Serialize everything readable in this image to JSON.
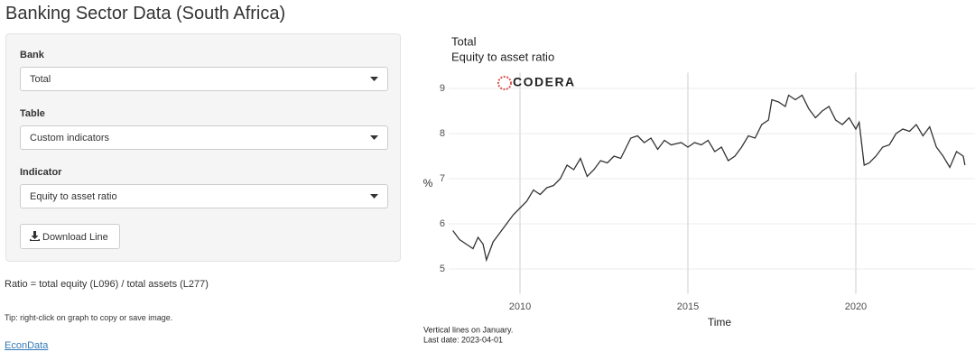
{
  "header": {
    "title": "Banking Sector Data (South Africa)"
  },
  "sidebar": {
    "fields": [
      {
        "label": "Bank",
        "value": "Total"
      },
      {
        "label": "Table",
        "value": "Custom indicators"
      },
      {
        "label": "Indicator",
        "value": "Equity to asset ratio"
      }
    ],
    "button": "Download Line"
  },
  "notes": {
    "formula": "Ratio = total equity (L096) / total assets (L277)",
    "tip": "Tip: right-click on graph to copy or save image.",
    "link": "EconData"
  },
  "chart_data": {
    "type": "line",
    "title": "Total",
    "subtitle": "Equity to asset ratio",
    "logo": "CODERA",
    "ylabel": "%",
    "xlabel": "Time",
    "caption": [
      "Vertical lines on January.",
      "Last date: 2023-04-01"
    ],
    "color": "#333333",
    "grid": true,
    "xlim": [
      2007.15,
      2023.55
    ],
    "xticks": [
      2010,
      2015,
      2020
    ],
    "ylim": [
      4.75,
      9.35
    ],
    "yticks": [
      5,
      6,
      7,
      8,
      9
    ],
    "x": [
      2008.0,
      2008.2,
      2008.4,
      2008.6,
      2008.75,
      2008.9,
      2009.0,
      2009.2,
      2009.4,
      2009.6,
      2009.8,
      2010.0,
      2010.2,
      2010.4,
      2010.6,
      2010.8,
      2011.0,
      2011.2,
      2011.4,
      2011.6,
      2011.8,
      2012.0,
      2012.2,
      2012.4,
      2012.6,
      2012.8,
      2013.0,
      2013.3,
      2013.5,
      2013.7,
      2013.9,
      2014.1,
      2014.3,
      2014.5,
      2014.8,
      2015.0,
      2015.2,
      2015.4,
      2015.6,
      2015.8,
      2016.0,
      2016.2,
      2016.4,
      2016.6,
      2016.8,
      2017.0,
      2017.2,
      2017.4,
      2017.5,
      2017.7,
      2017.9,
      2018.0,
      2018.2,
      2018.4,
      2018.6,
      2018.8,
      2019.0,
      2019.2,
      2019.4,
      2019.6,
      2019.8,
      2020.0,
      2020.1,
      2020.25,
      2020.4,
      2020.6,
      2020.8,
      2021.0,
      2021.2,
      2021.4,
      2021.6,
      2021.8,
      2022.0,
      2022.2,
      2022.4,
      2022.6,
      2022.8,
      2023.0,
      2023.2,
      2023.25
    ],
    "values": [
      5.85,
      5.65,
      5.55,
      5.45,
      5.7,
      5.55,
      5.2,
      5.6,
      5.8,
      6.0,
      6.2,
      6.35,
      6.5,
      6.75,
      6.65,
      6.8,
      6.85,
      7.0,
      7.3,
      7.2,
      7.45,
      7.05,
      7.2,
      7.4,
      7.35,
      7.5,
      7.45,
      7.9,
      7.95,
      7.8,
      7.9,
      7.65,
      7.85,
      7.75,
      7.8,
      7.7,
      7.8,
      7.75,
      7.85,
      7.6,
      7.7,
      7.4,
      7.5,
      7.7,
      7.95,
      7.9,
      8.2,
      8.3,
      8.75,
      8.7,
      8.6,
      8.85,
      8.75,
      8.85,
      8.55,
      8.35,
      8.5,
      8.6,
      8.3,
      8.2,
      8.35,
      8.1,
      8.25,
      7.3,
      7.35,
      7.5,
      7.7,
      7.75,
      8.0,
      8.1,
      8.05,
      8.2,
      7.95,
      8.15,
      7.7,
      7.5,
      7.25,
      7.6,
      7.5,
      7.3
    ]
  }
}
